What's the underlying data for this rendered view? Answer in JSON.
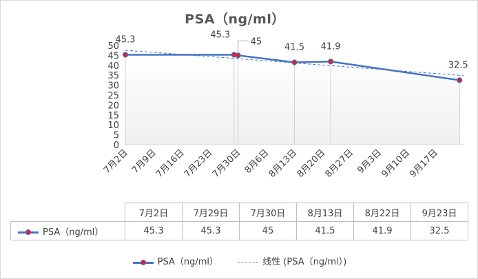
{
  "chart_data": {
    "type": "line",
    "title": "PSA（ng/ml）",
    "date_ticks": [
      "7月2日",
      "7月9日",
      "7月16日",
      "7月23日",
      "7月30日",
      "8月6日",
      "8月13日",
      "8月20日",
      "8月27日",
      "9月3日",
      "9月10日",
      "9月17日"
    ],
    "y_ticks": [
      "0",
      "5",
      "10",
      "15",
      "20",
      "25",
      "30",
      "35",
      "40",
      "45",
      "50"
    ],
    "ylim": [
      0,
      50
    ],
    "x_day_range": [
      0,
      84
    ],
    "series": [
      {
        "name": "PSA（ng/ml）",
        "days": [
          0,
          27,
          28,
          42,
          51,
          83
        ],
        "values": [
          45.3,
          45.3,
          45,
          41.5,
          41.9,
          32.5
        ],
        "labels": [
          "45.3",
          "45.3",
          "45",
          "41.5",
          "41.9",
          "32.5"
        ],
        "color": "#4472c4",
        "marker_color": "#e0202a"
      }
    ],
    "trendline": {
      "name": "线性 (PSA（ng/ml）)",
      "start": 47.6,
      "end": 34.8,
      "color": "#4472c4"
    },
    "table": {
      "headers": [
        "7月2日",
        "7月29日",
        "7月30日",
        "8月13日",
        "8月22日",
        "9月23日"
      ],
      "values": [
        "45.3",
        "45.3",
        "45",
        "41.5",
        "41.9",
        "32.5"
      ]
    },
    "legend": {
      "series_label": "PSA（ng/ml）",
      "trend_label": "线性 (PSA（ng/ml）)"
    }
  }
}
